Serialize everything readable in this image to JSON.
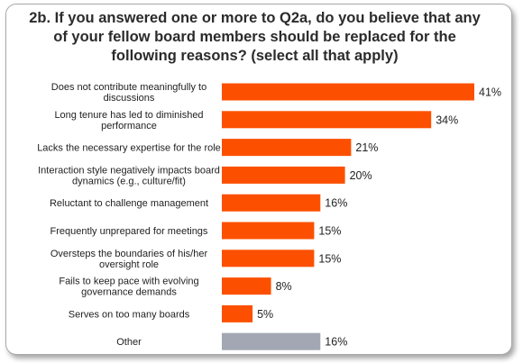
{
  "chart_data": {
    "type": "bar",
    "orientation": "horizontal",
    "title_lines": [
      "2b. If you answered one or more to Q2a, do you believe that any",
      "of your fellow board members should be replaced for the",
      "following reasons? (select all that apply)"
    ],
    "categories": [
      [
        "Does not contribute meaningfully to",
        "discussions"
      ],
      [
        "Long tenure has led to diminished",
        "performance"
      ],
      [
        "Lacks the necessary expertise for the role"
      ],
      [
        "Interaction style negatively impacts board",
        "dynamics (e.g., culture/fit)"
      ],
      [
        "Reluctant to challenge management"
      ],
      [
        "Frequently unprepared for meetings"
      ],
      [
        "Oversteps the boundaries of his/her",
        "oversight role"
      ],
      [
        "Fails to keep pace with evolving",
        "governance demands"
      ],
      [
        "Serves on too many boards"
      ],
      [
        "Other"
      ]
    ],
    "values": [
      41,
      34,
      21,
      20,
      16,
      15,
      15,
      8,
      5,
      16
    ],
    "value_labels": [
      "41%",
      "34%",
      "21%",
      "20%",
      "16%",
      "15%",
      "15%",
      "8%",
      "5%",
      "16%"
    ],
    "unit": "%",
    "colors": [
      "#fc5000",
      "#fc5000",
      "#fc5000",
      "#fc5000",
      "#fc5000",
      "#fc5000",
      "#fc5000",
      "#fc5000",
      "#fc5000",
      "#a2a7b3"
    ],
    "ylim": [
      0,
      41
    ],
    "grid": false,
    "legend": "none"
  }
}
